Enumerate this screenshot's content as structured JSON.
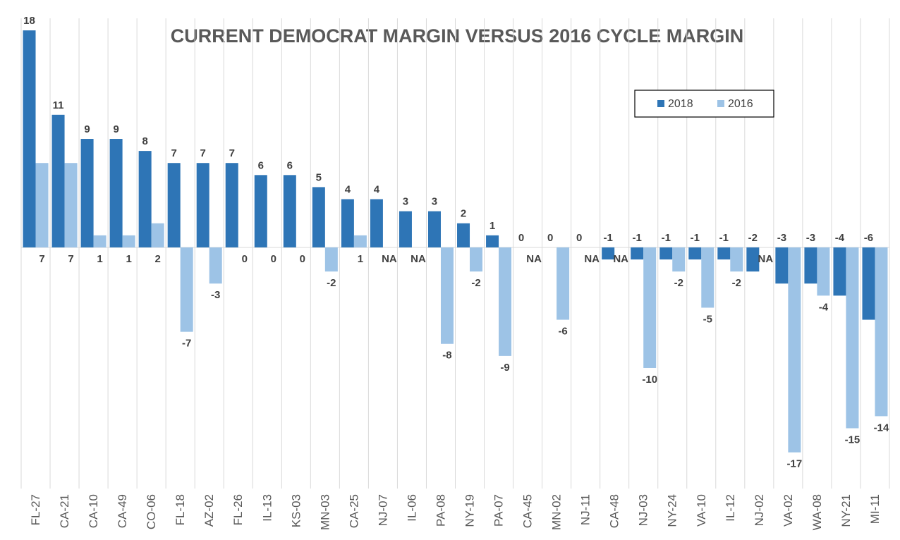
{
  "chart_data": {
    "type": "bar",
    "title": "CURRENT DEMOCRAT MARGIN VERSUS 2016 CYCLE MARGIN",
    "categories": [
      "FL-27",
      "CA-21",
      "CA-10",
      "CA-49",
      "CO-06",
      "FL-18",
      "AZ-02",
      "FL-26",
      "IL-13",
      "KS-03",
      "MN-03",
      "CA-25",
      "NJ-07",
      "IL-06",
      "PA-08",
      "NY-19",
      "PA-07",
      "CA-45",
      "MN-02",
      "NJ-11",
      "CA-48",
      "NJ-03",
      "NY-24",
      "VA-10",
      "IL-12",
      "NJ-02",
      "VA-02",
      "WA-08",
      "NY-21",
      "MI-11"
    ],
    "series": [
      {
        "name": "2018",
        "color": "#2e75b6",
        "values": [
          18,
          11,
          9,
          9,
          8,
          7,
          7,
          7,
          6,
          6,
          5,
          4,
          4,
          3,
          3,
          2,
          1,
          0,
          0,
          0,
          -1,
          -1,
          -1,
          -1,
          -1,
          -2,
          -3,
          -3,
          -4,
          -6
        ]
      },
      {
        "name": "2016",
        "color": "#9dc3e6",
        "values": [
          7,
          7,
          1,
          1,
          2,
          -7,
          -3,
          0,
          0,
          0,
          -2,
          1,
          null,
          null,
          -8,
          -2,
          -9,
          null,
          -6,
          null,
          null,
          -10,
          -2,
          -5,
          -2,
          null,
          -17,
          -4,
          -15,
          -14
        ],
        "value_labels": [
          "7",
          "7",
          "1",
          "1",
          "2",
          "-7",
          "-3",
          "0",
          "0",
          "0",
          "-2",
          "1",
          "NA",
          "NA",
          "-8",
          "-2",
          "-9",
          "NA",
          "-6",
          "NA",
          "NA",
          "-10",
          "-2",
          "-5",
          "-2",
          "NA",
          "-17",
          "-4",
          "-15",
          "-14"
        ]
      }
    ],
    "ylim": [
      -20,
      19
    ],
    "grid": true,
    "legend": "upper right"
  }
}
